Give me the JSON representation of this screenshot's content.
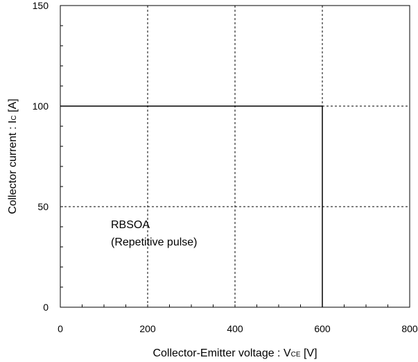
{
  "chart_data": {
    "type": "line",
    "title": "",
    "xlabel": {
      "main": "Collector-Emitter voltage : V",
      "subscript": "CE",
      "unit": " [V]"
    },
    "ylabel": {
      "main": "Collector current : I",
      "subscript": "C",
      "unit": " [A]"
    },
    "xlim": [
      0,
      800
    ],
    "ylim": [
      0,
      150
    ],
    "x_ticks": [
      0,
      200,
      400,
      600,
      800
    ],
    "y_ticks": [
      0,
      50,
      100,
      150
    ],
    "x_tick_labels": [
      "0",
      "200",
      "400",
      "600",
      "800"
    ],
    "y_tick_labels": [
      "0",
      "50",
      "100",
      "150"
    ],
    "x_minor_step": 50,
    "y_minor_step": 10,
    "grid": true,
    "series": [
      {
        "x": [
          0,
          600,
          600
        ],
        "y": [
          100,
          100,
          0
        ]
      }
    ],
    "annotation": [
      "RBSOA",
      "(Repetitive pulse)"
    ]
  }
}
